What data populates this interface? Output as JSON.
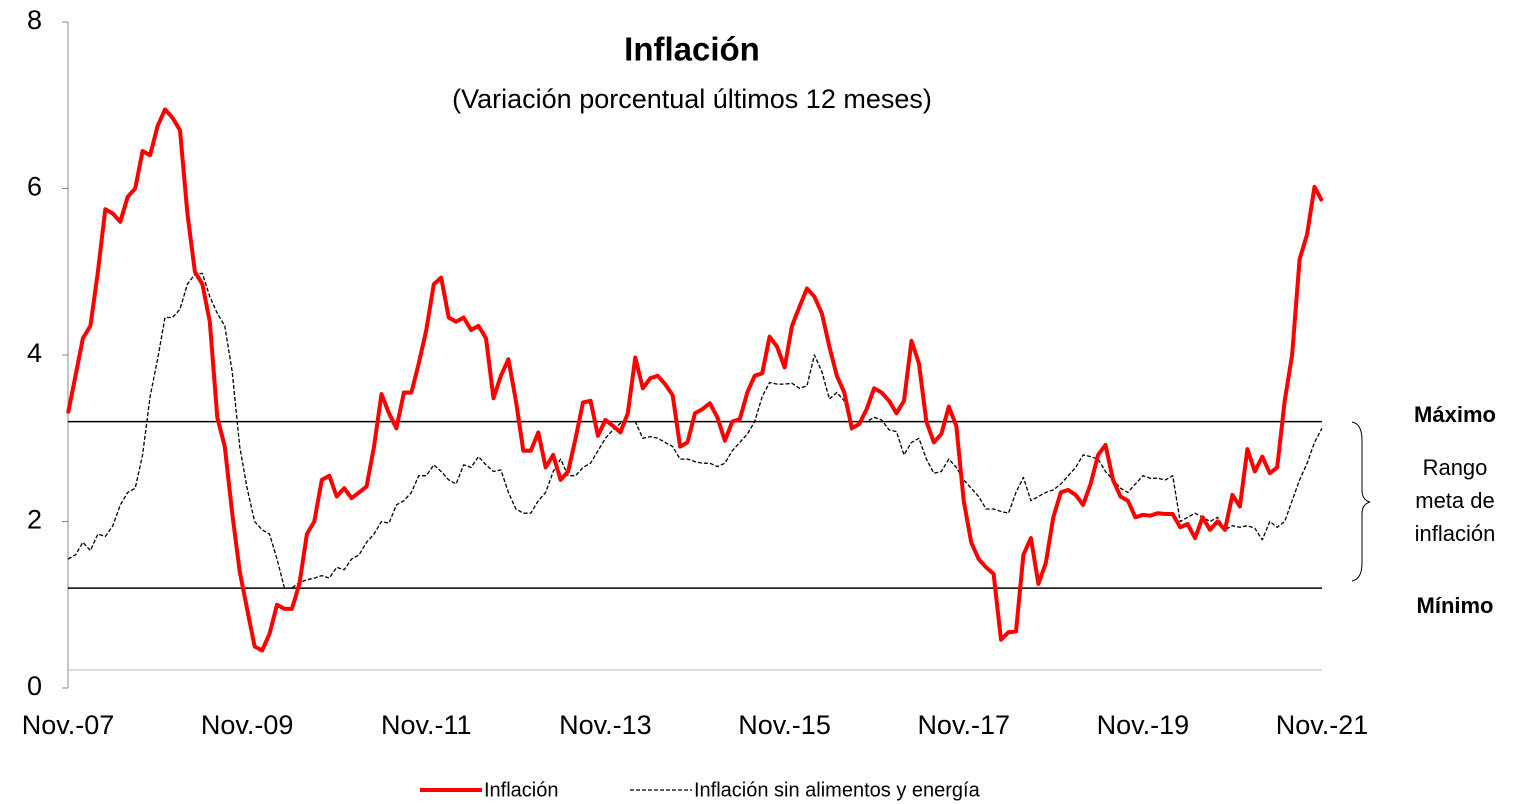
{
  "chart_data": {
    "type": "line",
    "title": "Inflación",
    "subtitle": "(Variación porcentual últimos 12 meses)",
    "categories": [
      "Nov.-07",
      null,
      null,
      null,
      null,
      null,
      null,
      null,
      null,
      null,
      null,
      null,
      null,
      null,
      null,
      null,
      null,
      null,
      null,
      null,
      null,
      null,
      null,
      null,
      "Nov.-09",
      null,
      null,
      null,
      null,
      null,
      null,
      null,
      null,
      null,
      null,
      null,
      null,
      null,
      null,
      null,
      null,
      null,
      null,
      null,
      null,
      null,
      null,
      null,
      "Nov.-11",
      null,
      null,
      null,
      null,
      null,
      null,
      null,
      null,
      null,
      null,
      null,
      null,
      null,
      null,
      null,
      null,
      null,
      null,
      null,
      null,
      null,
      null,
      null,
      "Nov.-13",
      null,
      null,
      null,
      null,
      null,
      null,
      null,
      null,
      null,
      null,
      null,
      null,
      null,
      null,
      null,
      null,
      null,
      null,
      null,
      null,
      null,
      null,
      null,
      "Nov.-15",
      null,
      null,
      null,
      null,
      null,
      null,
      null,
      null,
      null,
      null,
      null,
      null,
      null,
      null,
      null,
      null,
      null,
      null,
      null,
      null,
      null,
      null,
      null,
      "Nov.-17",
      null,
      null,
      null,
      null,
      null,
      null,
      null,
      null,
      null,
      null,
      null,
      null,
      null,
      null,
      null,
      null,
      null,
      null,
      null,
      null,
      null,
      null,
      null,
      "Nov.-19",
      null,
      null,
      null,
      null,
      null,
      null,
      null,
      null,
      null,
      null,
      null,
      null,
      null,
      null,
      null,
      null,
      null,
      null,
      null,
      null,
      null,
      null,
      null,
      "Nov.-21"
    ],
    "series": [
      {
        "name": "Inflación",
        "color": "#ff0000",
        "width": 4,
        "dashed": false,
        "values": [
          3.3,
          3.75,
          4.2,
          4.35,
          5.0,
          5.75,
          5.7,
          5.6,
          5.9,
          6.0,
          6.45,
          6.4,
          6.75,
          6.95,
          6.85,
          6.7,
          5.7,
          5.0,
          4.85,
          4.4,
          3.25,
          2.9,
          2.1,
          1.4,
          0.95,
          0.5,
          0.45,
          0.65,
          1.0,
          0.95,
          0.95,
          1.25,
          1.85,
          2.0,
          2.5,
          2.55,
          2.3,
          2.4,
          2.28,
          2.35,
          2.42,
          2.9,
          3.53,
          3.3,
          3.12,
          3.55,
          3.55,
          3.9,
          4.3,
          4.85,
          4.93,
          4.45,
          4.4,
          4.45,
          4.3,
          4.35,
          4.2,
          3.48,
          3.75,
          3.95,
          3.45,
          2.85,
          2.85,
          3.07,
          2.65,
          2.8,
          2.5,
          2.6,
          3.0,
          3.43,
          3.45,
          3.03,
          3.22,
          3.15,
          3.07,
          3.3,
          3.97,
          3.6,
          3.72,
          3.75,
          3.65,
          3.52,
          2.9,
          2.95,
          3.3,
          3.35,
          3.42,
          3.25,
          2.97,
          3.2,
          3.23,
          3.55,
          3.75,
          3.78,
          4.22,
          4.1,
          3.85,
          4.35,
          4.58,
          4.8,
          4.7,
          4.5,
          4.1,
          3.75,
          3.55,
          3.12,
          3.17,
          3.35,
          3.6,
          3.55,
          3.45,
          3.3,
          3.45,
          4.17,
          3.9,
          3.2,
          2.95,
          3.05,
          3.38,
          3.15,
          2.25,
          1.75,
          1.55,
          1.45,
          1.37,
          0.58,
          0.67,
          0.68,
          1.6,
          1.8,
          1.25,
          1.5,
          2.05,
          2.35,
          2.38,
          2.32,
          2.2,
          2.45,
          2.8,
          2.92,
          2.5,
          2.3,
          2.25,
          2.05,
          2.08,
          2.07,
          2.1,
          2.09,
          2.09,
          1.93,
          1.97,
          1.8,
          2.05,
          1.9,
          2.0,
          1.9,
          2.32,
          2.18,
          2.87,
          2.6,
          2.78,
          2.58,
          2.65,
          3.45,
          4.0,
          5.15,
          5.45,
          6.02,
          5.85
        ]
      },
      {
        "name": "Inflación sin alimentos y energía",
        "color": "#000000",
        "width": 1.3,
        "dashed": true,
        "values": [
          1.55,
          1.6,
          1.75,
          1.65,
          1.85,
          1.82,
          1.95,
          2.2,
          2.35,
          2.4,
          2.8,
          3.5,
          3.95,
          4.45,
          4.45,
          4.55,
          4.85,
          4.97,
          4.98,
          4.7,
          4.5,
          4.35,
          3.8,
          2.9,
          2.4,
          2.0,
          1.9,
          1.85,
          1.55,
          1.2,
          1.2,
          1.27,
          1.3,
          1.32,
          1.35,
          1.32,
          1.45,
          1.42,
          1.55,
          1.6,
          1.75,
          1.85,
          2.0,
          1.98,
          2.2,
          2.25,
          2.35,
          2.55,
          2.55,
          2.68,
          2.6,
          2.5,
          2.45,
          2.68,
          2.65,
          2.78,
          2.68,
          2.6,
          2.62,
          2.35,
          2.15,
          2.1,
          2.1,
          2.25,
          2.35,
          2.6,
          2.75,
          2.55,
          2.55,
          2.65,
          2.7,
          2.85,
          3.0,
          3.1,
          3.18,
          3.2,
          3.2,
          3.0,
          3.02,
          3.0,
          2.95,
          2.9,
          2.75,
          2.75,
          2.72,
          2.7,
          2.7,
          2.66,
          2.7,
          2.85,
          2.95,
          3.05,
          3.2,
          3.5,
          3.67,
          3.65,
          3.65,
          3.66,
          3.6,
          3.63,
          4.0,
          3.8,
          3.47,
          3.55,
          3.45,
          3.1,
          3.2,
          3.2,
          3.25,
          3.22,
          3.1,
          3.08,
          2.8,
          2.95,
          3.0,
          2.75,
          2.58,
          2.6,
          2.75,
          2.65,
          2.5,
          2.4,
          2.3,
          2.15,
          2.15,
          2.12,
          2.1,
          2.35,
          2.53,
          2.25,
          2.3,
          2.35,
          2.38,
          2.45,
          2.55,
          2.65,
          2.8,
          2.78,
          2.75,
          2.6,
          2.5,
          2.4,
          2.35,
          2.45,
          2.55,
          2.52,
          2.52,
          2.5,
          2.55,
          2.0,
          2.05,
          2.1,
          2.05,
          2.0,
          2.05,
          1.9,
          1.95,
          1.93,
          1.95,
          1.92,
          1.78,
          2.0,
          1.93,
          2.0,
          2.25,
          2.5,
          2.7,
          2.95,
          3.12
        ]
      }
    ],
    "ylim": [
      0,
      8
    ],
    "yticks": [
      0,
      2,
      4,
      6,
      8
    ],
    "reference_lines": [
      {
        "value": 3.2,
        "label": "Máximo"
      },
      {
        "value": 1.2,
        "label": "Mínimo"
      }
    ],
    "band_label": [
      "Rango",
      "meta de",
      "inflación"
    ],
    "legend": "bottom"
  }
}
